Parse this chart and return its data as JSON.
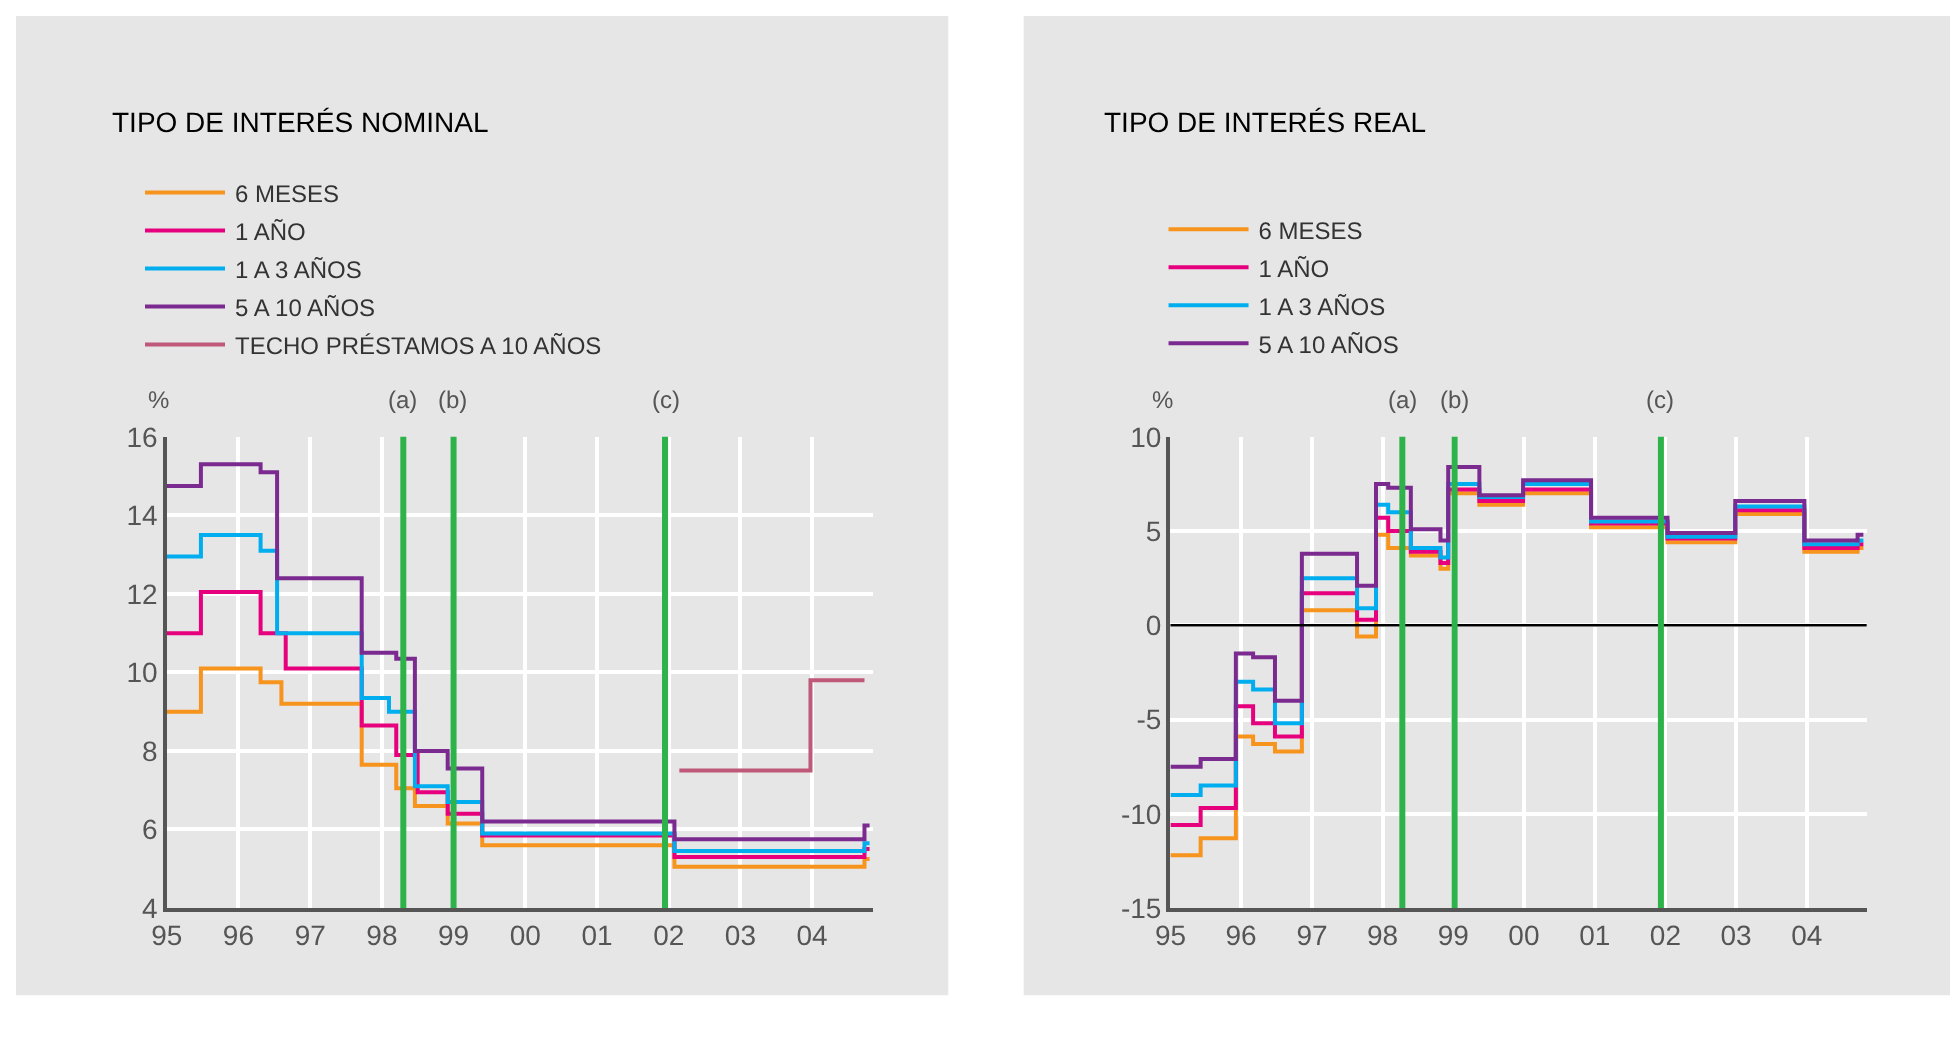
{
  "chart_data": [
    {
      "type": "step",
      "title": "TIPO DE INTERÉS NOMINAL",
      "ylabel": "%",
      "series": [
        {
          "name": "6 MESES",
          "color": "#f7941d",
          "x": [
            "1995-01-01",
            "1995-06-24",
            "1996-04-23",
            "1996-08-07",
            "1997-09-20",
            "1998-03-15",
            "1998-06-18",
            "1998-12-02",
            "1999-05-27",
            "2002-01-30",
            "2004-09-24",
            "2004-10-20"
          ],
          "values": [
            9.0,
            10.1,
            9.75,
            9.2,
            7.65,
            7.05,
            6.6,
            6.15,
            5.6,
            5.05,
            5.25,
            5.25
          ]
        },
        {
          "name": "1 AÑO",
          "color": "#e6007e",
          "x": [
            "1995-01-01",
            "1995-06-24",
            "1996-04-23",
            "1996-08-29",
            "1997-09-20",
            "1998-03-15",
            "1998-07-02",
            "1998-12-02",
            "1999-05-27",
            "2002-01-30",
            "2004-09-24",
            "2004-10-20"
          ],
          "values": [
            11.0,
            12.05,
            11.0,
            10.1,
            8.65,
            7.9,
            6.95,
            6.4,
            5.85,
            5.3,
            5.5,
            5.5
          ]
        },
        {
          "name": "1 A 3 AÑOS",
          "color": "#00aeef",
          "x": [
            "1995-01-01",
            "1995-06-24",
            "1996-04-23",
            "1996-07-16",
            "1997-09-20",
            "1998-02-06",
            "1998-06-18",
            "1998-12-02",
            "1999-05-27",
            "2002-01-30",
            "2004-09-24",
            "2004-10-20"
          ],
          "values": [
            12.95,
            13.5,
            13.1,
            11.0,
            9.35,
            9.0,
            7.1,
            6.7,
            5.9,
            5.45,
            5.65,
            5.65
          ]
        },
        {
          "name": "5 A 10 AÑOS",
          "color": "#7b2a90",
          "x": [
            "1995-01-01",
            "1995-06-24",
            "1996-04-23",
            "1996-07-16",
            "1997-09-20",
            "1998-03-15",
            "1998-06-18",
            "1998-12-02",
            "1999-05-27",
            "2002-01-30",
            "2004-09-24",
            "2004-10-20"
          ],
          "values": [
            14.75,
            15.3,
            15.1,
            12.4,
            10.5,
            10.35,
            8.0,
            7.55,
            6.2,
            5.75,
            6.1,
            6.1
          ]
        },
        {
          "name": "TECHO PRÉSTAMOS A 10 AÑOS",
          "color": "#c0587a",
          "x": [
            "2002-02-24",
            "2003-12-24",
            "2004-09-24"
          ],
          "values": [
            7.5,
            9.8,
            9.8
          ]
        }
      ],
      "xlim": [
        "1995-01-01",
        "2004-11-06"
      ],
      "xticks": [
        {
          "value": "1995",
          "label": "95"
        },
        {
          "value": "1996",
          "label": "96"
        },
        {
          "value": "1997",
          "label": "97"
        },
        {
          "value": "1998",
          "label": "98"
        },
        {
          "value": "1999",
          "label": "99"
        },
        {
          "value": "2000",
          "label": "00"
        },
        {
          "value": "2001",
          "label": "01"
        },
        {
          "value": "2002",
          "label": "02"
        },
        {
          "value": "2003",
          "label": "03"
        },
        {
          "value": "2004",
          "label": "04"
        }
      ],
      "ylim": [
        4,
        16
      ],
      "yticks": [
        4,
        6,
        8,
        10,
        12,
        14,
        16
      ],
      "ref_lines": [
        {
          "axis": "x",
          "value": "1998-04-20",
          "label": "(a)",
          "color": "#2db34a"
        },
        {
          "axis": "x",
          "value": "1999-01-01",
          "label": "(b)",
          "color": "#2db34a"
        },
        {
          "axis": "x",
          "value": "2001-12-13",
          "label": "(c)",
          "color": "#2db34a"
        }
      ],
      "grid": true,
      "legend": "top left",
      "marker": "none",
      "line_style": "solid"
    },
    {
      "type": "step",
      "title": "TIPO DE INTERÉS REAL",
      "ylabel": "%",
      "series": [
        {
          "name": "6 MESES",
          "color": "#f7941d",
          "x": [
            "1995-01-01",
            "1995-06-06",
            "1995-12-05",
            "1996-03-03",
            "1996-06-24",
            "1996-11-10",
            "1997-08-22",
            "1997-11-28",
            "1998-01-30",
            "1998-05-27",
            "1998-10-27",
            "1998-12-06",
            "1999-05-16",
            "1999-12-28",
            "2000-12-13",
            "2002-01-12",
            "2002-12-28",
            "2003-12-20",
            "2004-09-20",
            "2004-10-20"
          ],
          "values": [
            -12.2,
            -11.3,
            -5.9,
            -6.3,
            -6.7,
            0.8,
            -0.6,
            4.8,
            4.1,
            3.7,
            3.0,
            7.0,
            6.4,
            7.0,
            5.2,
            4.4,
            5.9,
            3.9,
            4.1,
            4.1
          ]
        },
        {
          "name": "1 AÑO",
          "color": "#e6007e",
          "x": [
            "1995-01-01",
            "1995-06-06",
            "1995-12-05",
            "1996-03-03",
            "1996-06-24",
            "1996-11-10",
            "1997-08-22",
            "1997-11-28",
            "1998-01-30",
            "1998-05-27",
            "1998-10-27",
            "1998-12-06",
            "1999-05-16",
            "1999-12-28",
            "2000-12-13",
            "2002-01-12",
            "2002-12-28",
            "2003-12-20",
            "2004-09-20",
            "2004-10-20"
          ],
          "values": [
            -10.6,
            -9.7,
            -4.3,
            -5.2,
            -5.9,
            1.7,
            0.3,
            5.7,
            5.0,
            3.9,
            3.3,
            7.2,
            6.6,
            7.2,
            5.4,
            4.6,
            6.1,
            4.1,
            4.3,
            4.3
          ]
        },
        {
          "name": "1 A 3 AÑOS",
          "color": "#00aeef",
          "x": [
            "1995-01-01",
            "1995-06-06",
            "1995-12-05",
            "1996-03-03",
            "1996-06-24",
            "1996-11-10",
            "1997-08-22",
            "1997-11-28",
            "1998-01-30",
            "1998-05-27",
            "1998-10-27",
            "1998-12-06",
            "1999-05-16",
            "1999-12-28",
            "2000-12-13",
            "2002-01-12",
            "2002-12-28",
            "2003-12-20",
            "2004-09-20",
            "2004-10-20"
          ],
          "values": [
            -9.0,
            -8.5,
            -3.0,
            -3.4,
            -5.2,
            2.5,
            0.9,
            6.4,
            6.0,
            4.1,
            3.6,
            7.5,
            6.8,
            7.5,
            5.5,
            4.7,
            6.3,
            4.3,
            4.5,
            4.5
          ]
        },
        {
          "name": "5 A 10 AÑOS",
          "color": "#7b2a90",
          "x": [
            "1995-01-01",
            "1995-06-06",
            "1995-12-05",
            "1996-03-03",
            "1996-06-24",
            "1996-11-10",
            "1997-08-22",
            "1997-11-28",
            "1998-01-30",
            "1998-05-27",
            "1998-10-27",
            "1998-12-06",
            "1999-05-16",
            "1999-12-28",
            "2000-12-13",
            "2002-01-12",
            "2002-12-28",
            "2003-12-20",
            "2004-09-20",
            "2004-10-20"
          ],
          "values": [
            -7.5,
            -7.1,
            -1.5,
            -1.7,
            -4.0,
            3.8,
            2.1,
            7.5,
            7.3,
            5.1,
            4.5,
            8.4,
            6.9,
            7.7,
            5.7,
            4.9,
            6.6,
            4.5,
            4.8,
            4.8
          ]
        }
      ],
      "xlim": [
        "1995-01-01",
        "2004-11-06"
      ],
      "xticks": [
        {
          "value": "1995",
          "label": "95"
        },
        {
          "value": "1996",
          "label": "96"
        },
        {
          "value": "1997",
          "label": "97"
        },
        {
          "value": "1998",
          "label": "98"
        },
        {
          "value": "1999",
          "label": "99"
        },
        {
          "value": "2000",
          "label": "00"
        },
        {
          "value": "2001",
          "label": "01"
        },
        {
          "value": "2002",
          "label": "02"
        },
        {
          "value": "2003",
          "label": "03"
        },
        {
          "value": "2004",
          "label": "04"
        }
      ],
      "ylim": [
        -15,
        10
      ],
      "yticks": [
        -15,
        -10,
        -5,
        0,
        5,
        10
      ],
      "ref_lines": [
        {
          "axis": "y",
          "value": 0,
          "label": null,
          "color": "#000000"
        },
        {
          "axis": "x",
          "value": "1998-04-13",
          "label": "(a)",
          "color": "#2db34a"
        },
        {
          "axis": "x",
          "value": "1999-01-08",
          "label": "(b)",
          "color": "#2db34a"
        },
        {
          "axis": "x",
          "value": "2001-12-09",
          "label": "(c)",
          "color": "#2db34a"
        }
      ],
      "grid": true,
      "legend": "top left",
      "marker": "none",
      "line_style": "solid"
    }
  ]
}
